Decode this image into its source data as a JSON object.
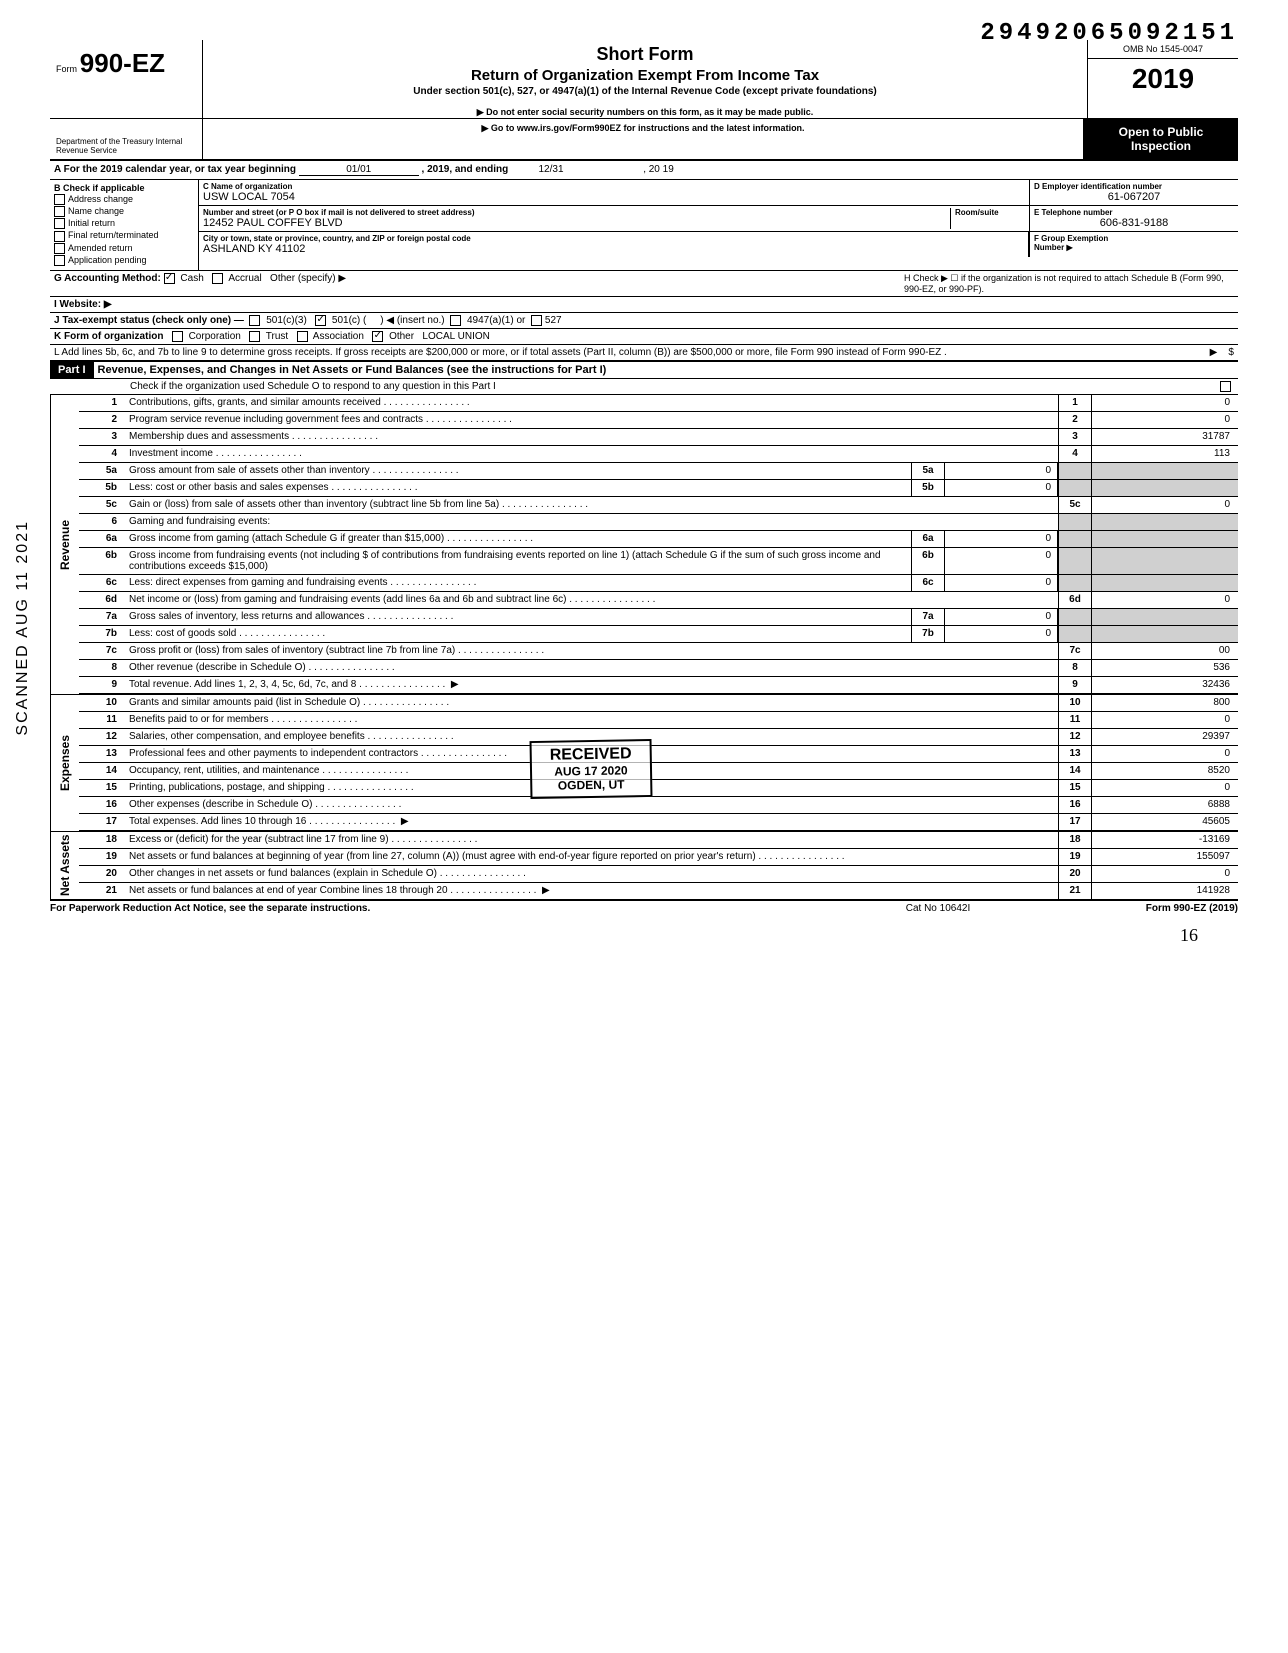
{
  "doc_number": "29492065092151",
  "header": {
    "form_prefix": "Form",
    "form_no": "990-EZ",
    "short_form": "Short Form",
    "title": "Return of Organization Exempt From Income Tax",
    "subtitle": "Under section 501(c), 527, or 4947(a)(1) of the Internal Revenue Code (except private foundations)",
    "instr1": "▶ Do not enter social security numbers on this form, as it may be made public.",
    "instr2": "▶ Go to www.irs.gov/Form990EZ for instructions and the latest information.",
    "dept": "Department of the Treasury\nInternal Revenue Service",
    "omb": "OMB No 1545-0047",
    "year": "2019",
    "open": "Open to Public",
    "inspection": "Inspection"
  },
  "A": {
    "text": "A  For the 2019 calendar year, or tax year beginning",
    "begin": "01/01",
    "mid": ", 2019, and ending",
    "end_m": "12/31",
    "end_y": ", 20   19"
  },
  "B": {
    "title": "B  Check if applicable",
    "opts": [
      "Address change",
      "Name change",
      "Initial return",
      "Final return/terminated",
      "Amended return",
      "Application pending"
    ]
  },
  "C": {
    "lbl": "C  Name of organization",
    "val": "USW LOCAL 7054",
    "street_lbl": "Number and street (or P O  box if mail is not delivered to street address)",
    "street": "12452 PAUL COFFEY BLVD",
    "city_lbl": "City or town, state or province, country, and ZIP or foreign postal code",
    "city": "ASHLAND KY 41102",
    "room_lbl": "Room/suite"
  },
  "D": {
    "lbl": "D Employer identification number",
    "val": "61-067207"
  },
  "E": {
    "lbl": "E Telephone number",
    "val": "606-831-9188"
  },
  "F": {
    "lbl": "F Group Exemption",
    "lbl2": "Number ▶"
  },
  "G": {
    "lbl": "G  Accounting Method:",
    "cash": "Cash",
    "accrual": "Accrual",
    "other": "Other (specify) ▶"
  },
  "H": {
    "txt": "H  Check ▶ ☐ if the organization is not required to attach Schedule B (Form 990, 990-EZ, or 990-PF)."
  },
  "I": {
    "lbl": "I   Website: ▶"
  },
  "J": {
    "lbl": "J  Tax-exempt status (check only one) —",
    "c3": "501(c)(3)",
    "c": "501(c) (",
    "ins": "◀ (insert no.)",
    "a1": "4947(a)(1) or",
    "527": "527"
  },
  "K": {
    "lbl": "K  Form of organization",
    "corp": "Corporation",
    "trust": "Trust",
    "assoc": "Association",
    "other": "Other",
    "other_val": "LOCAL UNION"
  },
  "L": {
    "txt": "L  Add lines 5b, 6c, and 7b to line 9 to determine gross receipts. If gross receipts are $200,000 or more, or if total assets (Part II, column (B)) are $500,000 or more, file Form 990 instead of Form 990-EZ ."
  },
  "part1": {
    "label": "Part I",
    "title": "Revenue, Expenses, and Changes in Net Assets or Fund Balances (see the instructions for Part I)",
    "check": "Check if the organization used Schedule O to respond to any question in this Part I"
  },
  "sections": {
    "revenue": "Revenue",
    "expenses": "Expenses",
    "netassets": "Net Assets"
  },
  "lines": {
    "1": {
      "d": "Contributions, gifts, grants, and similar amounts received",
      "v": "0"
    },
    "2": {
      "d": "Program service revenue including government fees and contracts",
      "v": "0"
    },
    "3": {
      "d": "Membership dues and assessments",
      "v": "31787"
    },
    "4": {
      "d": "Investment income",
      "v": "113"
    },
    "5a": {
      "d": "Gross amount from sale of assets other than inventory",
      "m": "0"
    },
    "5b": {
      "d": "Less: cost or other basis and sales expenses",
      "m": "0"
    },
    "5c": {
      "d": "Gain or (loss) from sale of assets other than inventory (subtract line 5b from line 5a)",
      "v": "0"
    },
    "6": {
      "d": "Gaming and fundraising events:"
    },
    "6a": {
      "d": "Gross income from gaming (attach Schedule G if greater than $15,000)",
      "m": "0"
    },
    "6b": {
      "d": "Gross income from fundraising events (not including  $                      of contributions from fundraising events reported on line 1) (attach Schedule G if the sum of such gross income and contributions exceeds $15,000)",
      "m": "0"
    },
    "6c": {
      "d": "Less: direct expenses from gaming and fundraising events",
      "m": "0"
    },
    "6d": {
      "d": "Net income or (loss) from gaming and fundraising events (add lines 6a and 6b and subtract line 6c)",
      "v": "0"
    },
    "7a": {
      "d": "Gross sales of inventory, less returns and allowances",
      "m": "0"
    },
    "7b": {
      "d": "Less: cost of goods sold",
      "m": "0"
    },
    "7c": {
      "d": "Gross profit or (loss) from sales of inventory (subtract line 7b from line 7a)",
      "v": "00"
    },
    "8": {
      "d": "Other revenue (describe in Schedule O)",
      "v": "536"
    },
    "9": {
      "d": "Total revenue. Add lines 1, 2, 3, 4, 5c, 6d, 7c, and 8",
      "v": "32436"
    },
    "10": {
      "d": "Grants and similar amounts paid (list in Schedule O)",
      "v": "800"
    },
    "11": {
      "d": "Benefits paid to or for members",
      "v": "0"
    },
    "12": {
      "d": "Salaries, other compensation, and employee benefits",
      "v": "29397"
    },
    "13": {
      "d": "Professional fees and other payments to independent contractors",
      "v": "0"
    },
    "14": {
      "d": "Occupancy, rent, utilities, and maintenance",
      "v": "8520"
    },
    "15": {
      "d": "Printing, publications, postage, and shipping",
      "v": "0"
    },
    "16": {
      "d": "Other expenses (describe in Schedule O)",
      "v": "6888"
    },
    "17": {
      "d": "Total expenses. Add lines 10 through 16",
      "v": "45605"
    },
    "18": {
      "d": "Excess or (deficit) for the year (subtract line 17 from line 9)",
      "v": "-13169"
    },
    "19": {
      "d": "Net assets or fund balances at beginning of year (from line 27, column (A)) (must agree with end-of-year figure reported on prior year's return)",
      "v": "155097"
    },
    "20": {
      "d": "Other changes in net assets or fund balances (explain in Schedule O)",
      "v": "0"
    },
    "21": {
      "d": "Net assets or fund balances at end of year  Combine lines 18 through 20",
      "v": "141928"
    }
  },
  "footer": {
    "l": "For Paperwork Reduction Act Notice, see the separate instructions.",
    "m": "Cat No 10642I",
    "r": "Form 990-EZ (2019)"
  },
  "stamps": {
    "received": "RECEIVED",
    "date": "AUG 17 2020",
    "loc": "OGDEN, UT",
    "side": "SCANNED AUG 11 2021",
    "page": "16"
  },
  "colors": {
    "border": "#000000",
    "shade": "#d0d0d0",
    "blackbg": "#000000",
    "text": "#000000"
  }
}
